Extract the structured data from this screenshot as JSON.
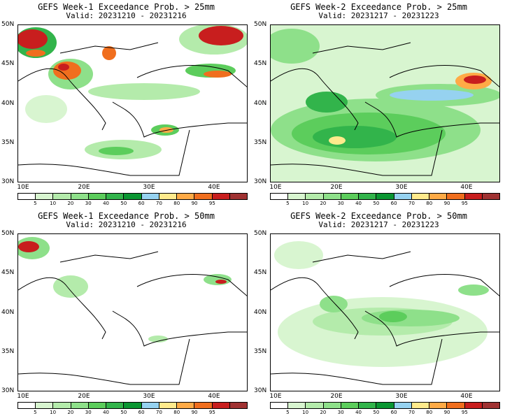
{
  "panels": [
    {
      "title": "GEFS Week-1 Exceedance Prob. > 25mm",
      "valid": "Valid: 20231210 - 20231216"
    },
    {
      "title": "GEFS Week-2 Exceedance Prob. > 25mm",
      "valid": "Valid: 20231217 - 20231223"
    },
    {
      "title": "GEFS Week-1 Exceedance Prob. > 50mm",
      "valid": "Valid: 20231210 - 20231216"
    },
    {
      "title": "GEFS Week-2 Exceedance Prob. > 50mm",
      "valid": "Valid: 20231217 - 20231223"
    }
  ],
  "lat_labels": [
    "50N",
    "45N",
    "40N",
    "35N",
    "30N"
  ],
  "lon_labels": [
    "10E",
    "20E",
    "30E",
    "40E"
  ],
  "colorbar": {
    "labels": [
      "5",
      "10",
      "20",
      "30",
      "40",
      "50",
      "60",
      "70",
      "80",
      "90",
      "95"
    ],
    "colors": [
      "#ffffff",
      "#d8f5d0",
      "#b4ebab",
      "#8ee08a",
      "#5ccd5c",
      "#32b44b",
      "#0a9632",
      "#96d2f0",
      "#ffea8c",
      "#ffaa46",
      "#f06e1e",
      "#c81e1e",
      "#a03232"
    ]
  }
}
